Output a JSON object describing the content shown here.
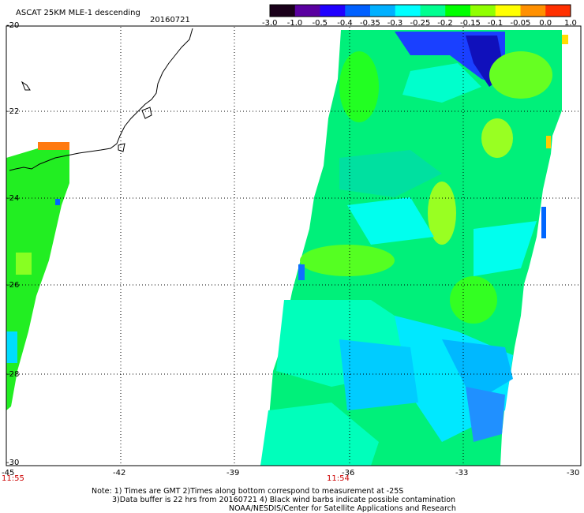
{
  "header": {
    "title": "ASCAT 25KM MLE-1 descending",
    "date": "20160721"
  },
  "colorbar": {
    "labels": [
      "-3.0",
      "-1.0",
      "-0.5",
      "-0.4",
      "-0.35",
      "-0.3",
      "-0.25",
      "-0.2",
      "-0.15",
      "-0.1",
      "-0.05",
      "0.0",
      "1.0"
    ],
    "colors": [
      "#1a001a",
      "#5a00a0",
      "#2000ff",
      "#0060ff",
      "#00b0ff",
      "#00ffff",
      "#00ff90",
      "#00ff00",
      "#90ff00",
      "#ffff00",
      "#ff9000",
      "#ff3000"
    ]
  },
  "axes": {
    "lat_labels": [
      "-20",
      "-22",
      "-24",
      "-26",
      "-28",
      "-30"
    ],
    "lon_labels": [
      "-45",
      "-42",
      "-39",
      "-36",
      "-33",
      "-30"
    ]
  },
  "times": {
    "left": "11:55",
    "middle": "11:54"
  },
  "notes": {
    "line1": "Note: 1) Times are GMT 2)Times along bottom correspond to measurement at -25S",
    "line2": "3)Data buffer is 22 hrs from 20160721 4) Black wind barbs indicate possible contamination",
    "line3": "NOAA/NESDIS/Center for Satellite Applications and Research"
  }
}
